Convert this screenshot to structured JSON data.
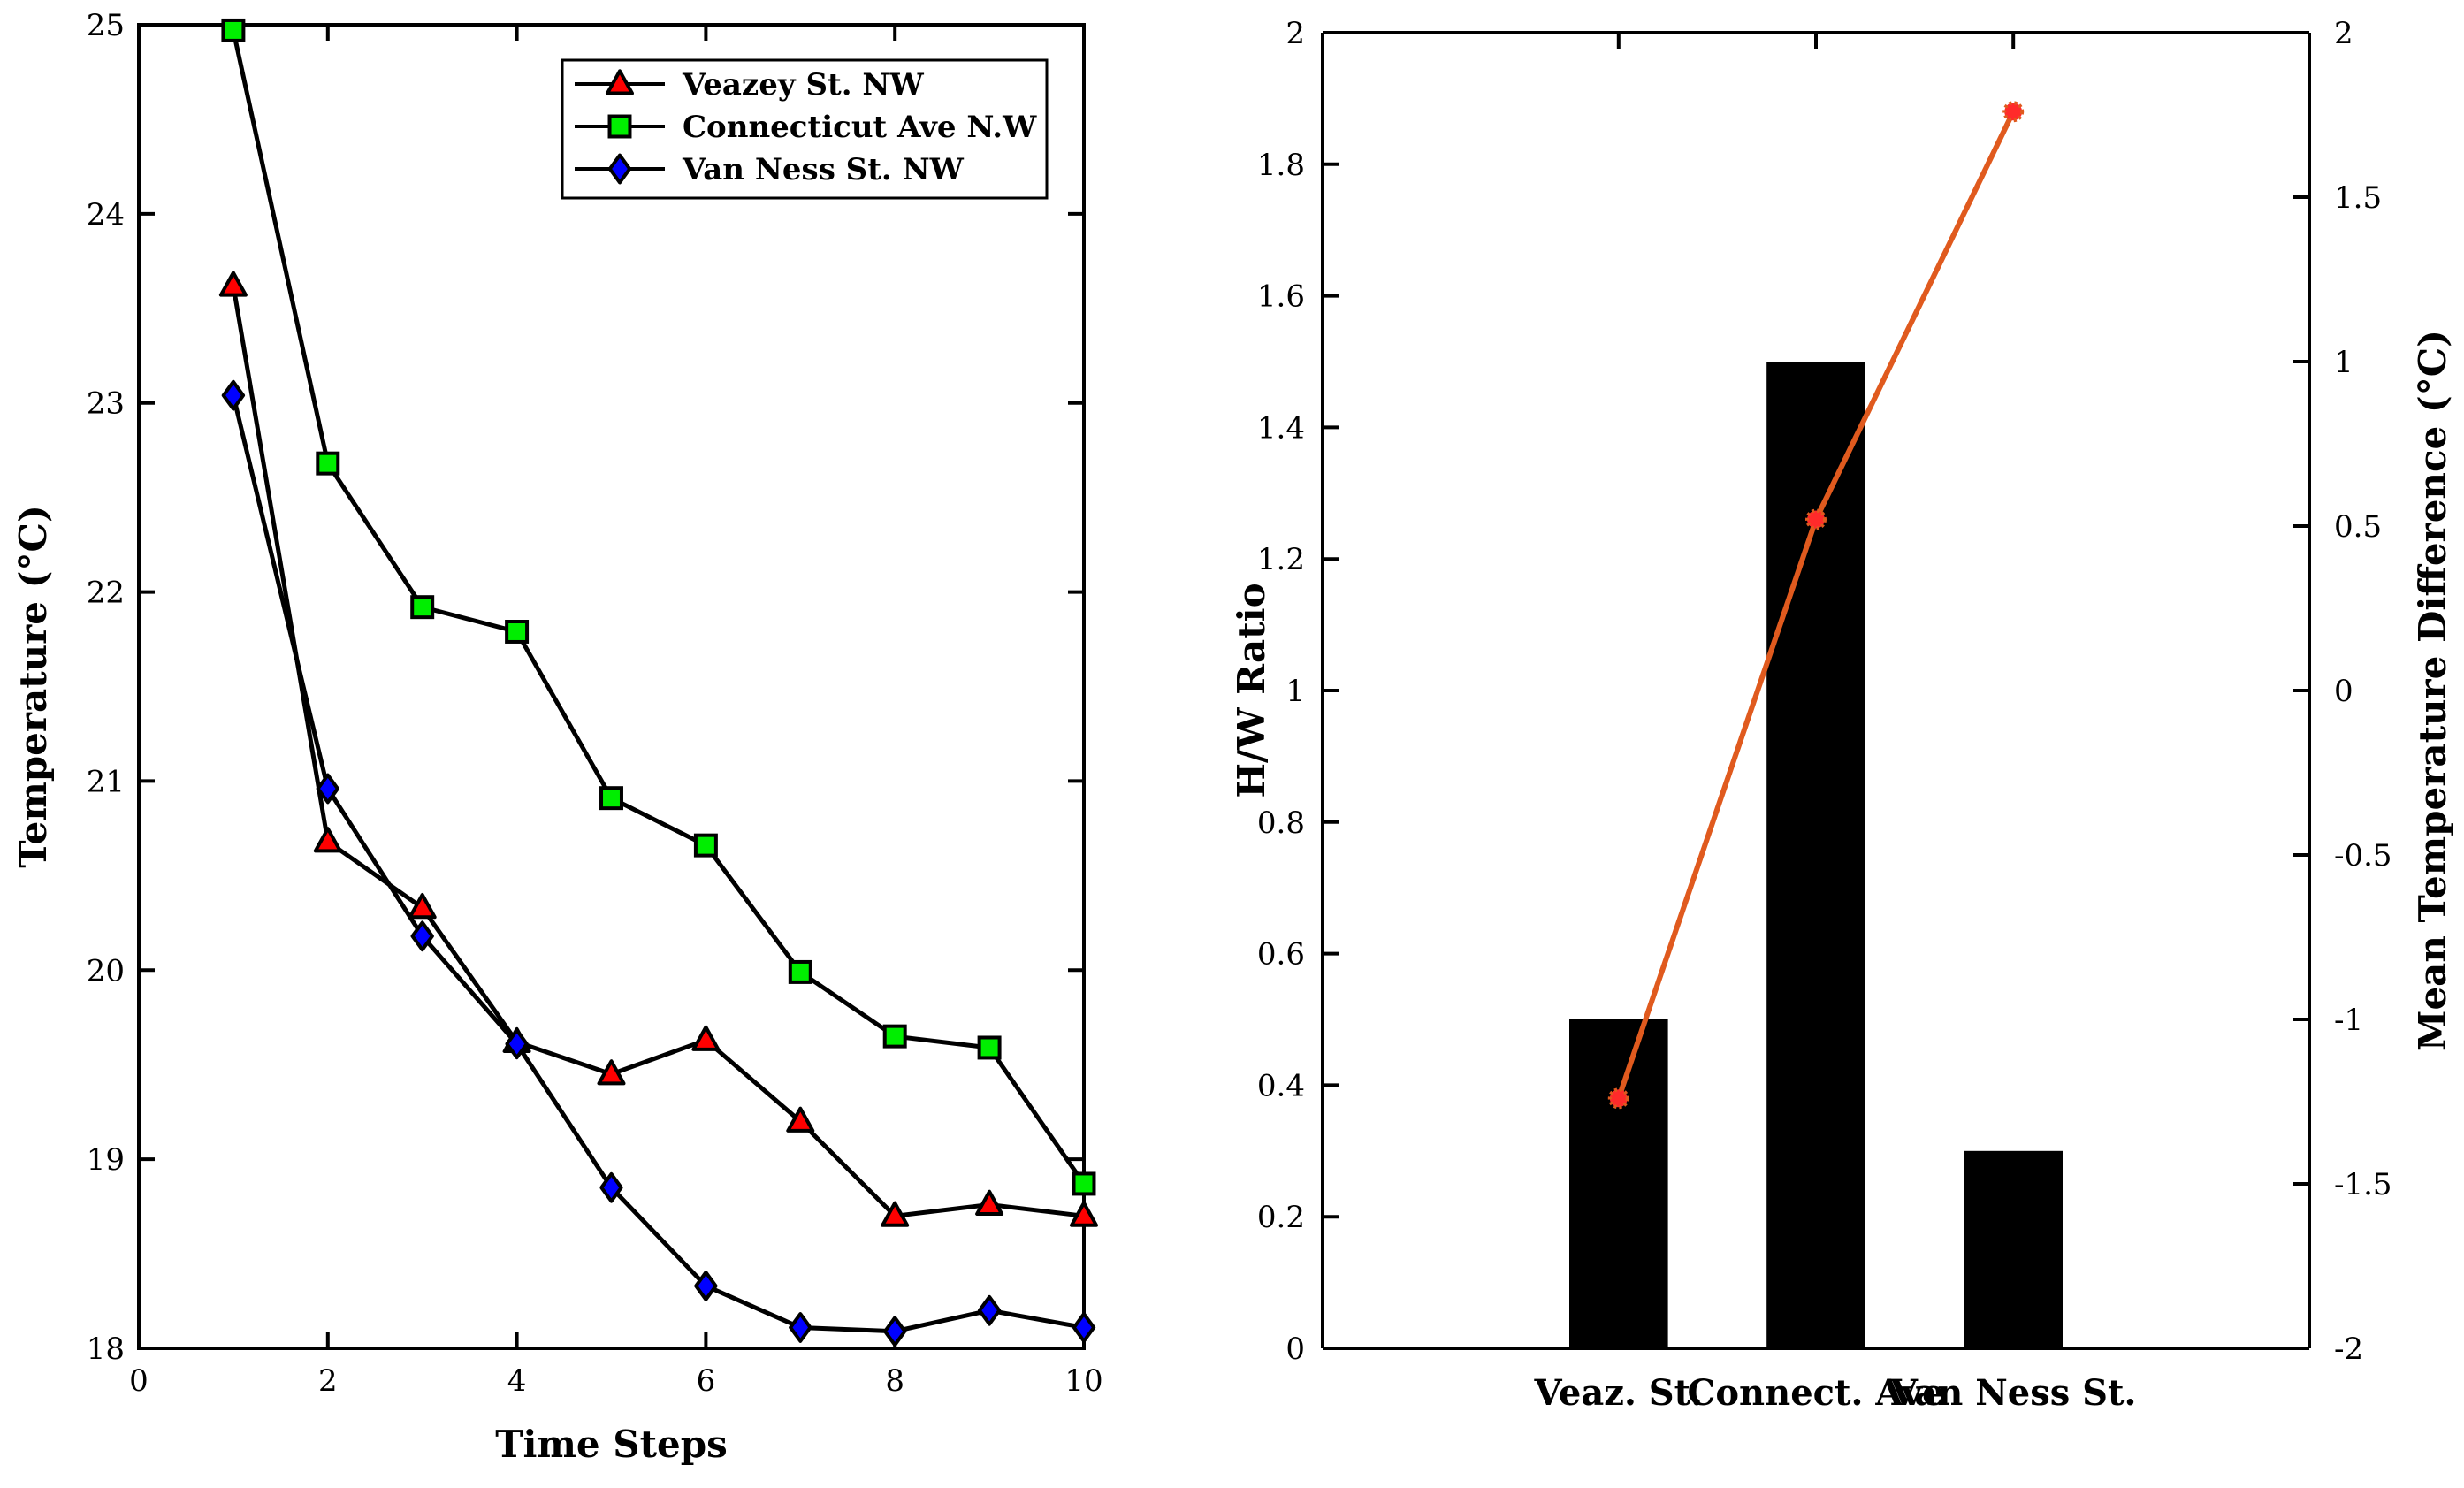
{
  "chart_data": [
    {
      "type": "line",
      "title": "",
      "xlabel": "Time Steps",
      "ylabel": "Temperature (°C)",
      "xlim": [
        0,
        10
      ],
      "ylim": [
        18,
        25
      ],
      "xticks": [
        0,
        2,
        4,
        6,
        8,
        10
      ],
      "yticks": [
        18,
        19,
        20,
        21,
        22,
        23,
        24,
        25
      ],
      "grid": false,
      "legend_position": "top-right",
      "x": [
        1,
        2,
        3,
        4,
        5,
        6,
        7,
        8,
        9,
        10
      ],
      "series": [
        {
          "name": "Veazey St. NW",
          "marker": "triangle",
          "color": "#ff0000",
          "values": [
            23.62,
            20.68,
            20.33,
            19.62,
            19.45,
            19.63,
            19.2,
            18.7,
            18.76,
            18.7
          ]
        },
        {
          "name": "Connecticut Ave N.W",
          "marker": "square",
          "color": "#00ee00",
          "values": [
            24.97,
            22.68,
            21.92,
            21.79,
            20.91,
            20.66,
            19.99,
            19.65,
            19.59,
            18.87
          ]
        },
        {
          "name": "Van Ness St. NW",
          "marker": "diamond",
          "color": "#0000ff",
          "values": [
            23.04,
            20.96,
            20.18,
            19.61,
            18.85,
            18.33,
            18.11,
            18.09,
            18.2,
            18.11
          ]
        }
      ]
    },
    {
      "type": "bar",
      "title": "",
      "xlabel": "",
      "ylabel": "H/W Ratio",
      "y2label": "Mean Temperature Difference (°C)",
      "categories": [
        "Veaz. St.",
        "Connect. Ave",
        "Van Ness St."
      ],
      "ylim": [
        0,
        2
      ],
      "yticks": [
        "0",
        "0.2",
        "0.4",
        "0.6",
        "0.8",
        "1",
        "1.2",
        "1.4",
        "1.6",
        "1.8",
        "2"
      ],
      "y2lim": [
        -2,
        2
      ],
      "y2ticks": [
        "-2",
        "-1.5",
        "-1",
        "-0.5",
        "0",
        "0.5",
        "1",
        "1.5",
        "2"
      ],
      "grid": false,
      "bar_color": "#000000",
      "line_color": "#e05a1e",
      "marker_color": "#ff2a2a",
      "series": [
        {
          "name": "H/W Ratio",
          "axis": "left",
          "type": "bar",
          "values": [
            0.5,
            1.5,
            0.3
          ]
        },
        {
          "name": "Mean Temperature Difference (°C)",
          "axis": "right",
          "type": "line",
          "values": [
            -1.24,
            0.52,
            1.76
          ]
        }
      ]
    }
  ]
}
